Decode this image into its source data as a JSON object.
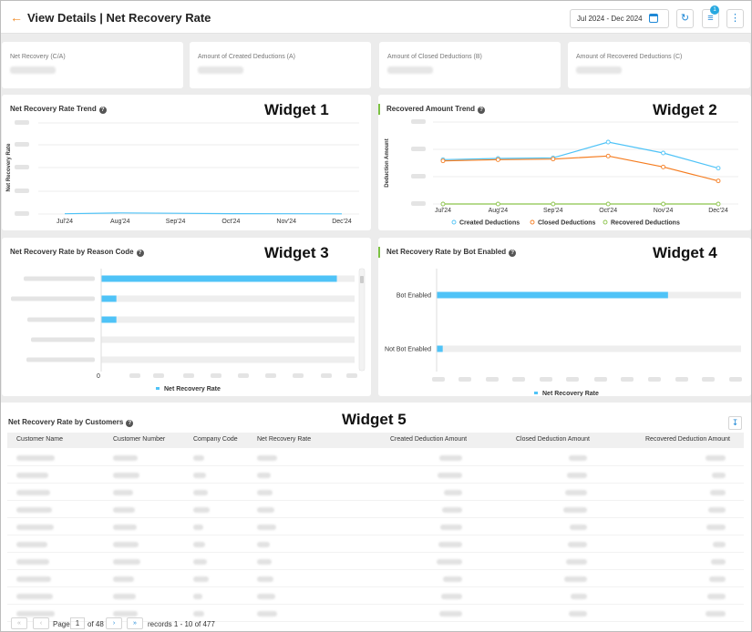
{
  "header": {
    "back_icon": "arrow-left-icon",
    "title": "View Details | Net Recovery Rate",
    "date_range": "Jul 2024 - Dec 2024",
    "filter_badge": "1"
  },
  "kpis": [
    {
      "label": "Net Recovery (C/A)"
    },
    {
      "label": "Amount of Created Deductions (A)"
    },
    {
      "label": "Amount of Closed Deductions (B)"
    },
    {
      "label": "Amount of Recovered Deductions (C)"
    }
  ],
  "widgets": {
    "w1": {
      "title": "Net Recovery Rate Trend",
      "tag": "Widget 1",
      "ylabel": "Net Recovery Rate"
    },
    "w2": {
      "title": "Recovered Amount Trend",
      "tag": "Widget 2",
      "ylabel": "Deduction Amount"
    },
    "w3": {
      "title": "Net Recovery Rate by Reason Code",
      "tag": "Widget 3",
      "legend": "Net Recovery Rate",
      "zero": "0"
    },
    "w4": {
      "title": "Net Recovery Rate by Bot Enabled",
      "tag": "Widget 4",
      "legend": "Net Recovery Rate"
    },
    "w5": {
      "title": "Net Recovery Rate by Customers",
      "tag": "Widget 5"
    }
  },
  "chart_data": [
    {
      "type": "line",
      "title": "Net Recovery Rate Trend",
      "ylabel": "Net Recovery Rate",
      "categories": [
        "Jul'24",
        "Aug'24",
        "Sep'24",
        "Oct'24",
        "Nov'24",
        "Dec'24"
      ],
      "series": [
        {
          "values": [
            0.3,
            1.2,
            0.8,
            0.4,
            0.3,
            0.2
          ]
        }
      ],
      "ylim": [
        0,
        100
      ],
      "grid": true,
      "color": "#4fc3f7"
    },
    {
      "type": "line",
      "title": "Recovered Amount Trend",
      "ylabel": "Deduction Amount",
      "categories": [
        "Jul'24",
        "Aug'24",
        "Sep'24",
        "Oct'24",
        "Nov'24",
        "Dec'24"
      ],
      "series": [
        {
          "name": "Created Deductions",
          "color": "#4fc3f7",
          "values": [
            730,
            750,
            760,
            1020,
            840,
            590
          ]
        },
        {
          "name": "Closed Deductions",
          "color": "#f57c1f",
          "values": [
            710,
            730,
            740,
            790,
            610,
            380
          ]
        },
        {
          "name": "Recovered Deductions",
          "color": "#8bc34a",
          "values": [
            0,
            0,
            0,
            0,
            0,
            0
          ]
        }
      ],
      "ylim": [
        0,
        1200
      ],
      "legend": "bottom",
      "grid": true
    },
    {
      "type": "bar",
      "orientation": "horizontal",
      "title": "Net Recovery Rate by Reason Code",
      "series": [
        {
          "name": "Net Recovery Rate",
          "color": "#4fc3f7",
          "values": [
            93,
            6,
            6,
            0,
            0
          ]
        }
      ],
      "xlim": [
        0,
        100
      ],
      "legend": "bottom"
    },
    {
      "type": "bar",
      "orientation": "horizontal",
      "title": "Net Recovery Rate by Bot Enabled",
      "categories": [
        "Bot Enabled",
        "Not Bot Enabled"
      ],
      "series": [
        {
          "name": "Net Recovery Rate",
          "color": "#4fc3f7",
          "values": [
            76,
            2
          ]
        }
      ],
      "xlim": [
        0,
        100
      ],
      "legend": "bottom"
    }
  ],
  "table": {
    "columns": [
      "Customer Name",
      "Customer Number",
      "Company Code",
      "Net Recovery Rate",
      "Created Deduction Amount",
      "Closed Deduction Amount",
      "Recovered Deduction Amount"
    ],
    "row_count": 10,
    "download_icon": "download-icon"
  },
  "pager": {
    "page_label": "Page",
    "page": "1",
    "of": "of 48",
    "records": "records 1 - 10 of 477"
  }
}
